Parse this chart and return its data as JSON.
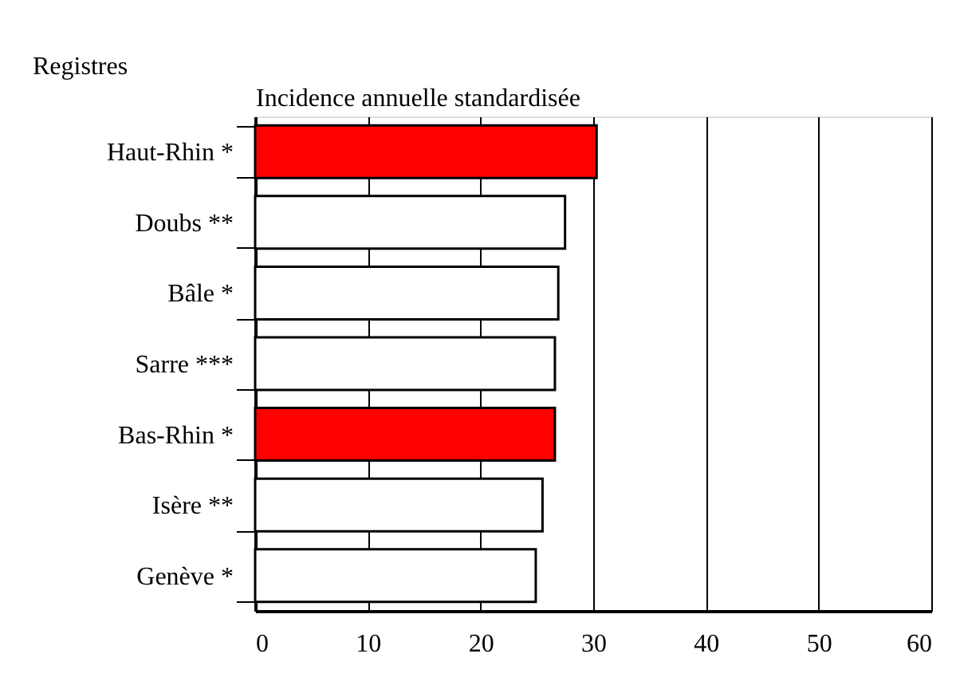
{
  "chart_data": {
    "type": "bar",
    "orientation": "horizontal",
    "xlabel": "Incidence annuelle standardisée",
    "ylabel": "Registres",
    "categories": [
      "Haut-Rhin *",
      "Doubs **",
      "Bâle *",
      "Sarre ***",
      "Bas-Rhin *",
      "Isère **",
      "Genève *"
    ],
    "values": [
      30.3,
      27.5,
      26.9,
      26.6,
      26.6,
      25.5,
      24.9
    ],
    "colors": [
      "#ff0000",
      "#ffffff",
      "#ffffff",
      "#ffffff",
      "#ff0000",
      "#ffffff",
      "#ffffff"
    ],
    "xlim": [
      0,
      60
    ],
    "xticks": [
      0,
      10,
      20,
      30,
      40,
      50,
      60
    ],
    "grid": "x",
    "legend": false
  }
}
